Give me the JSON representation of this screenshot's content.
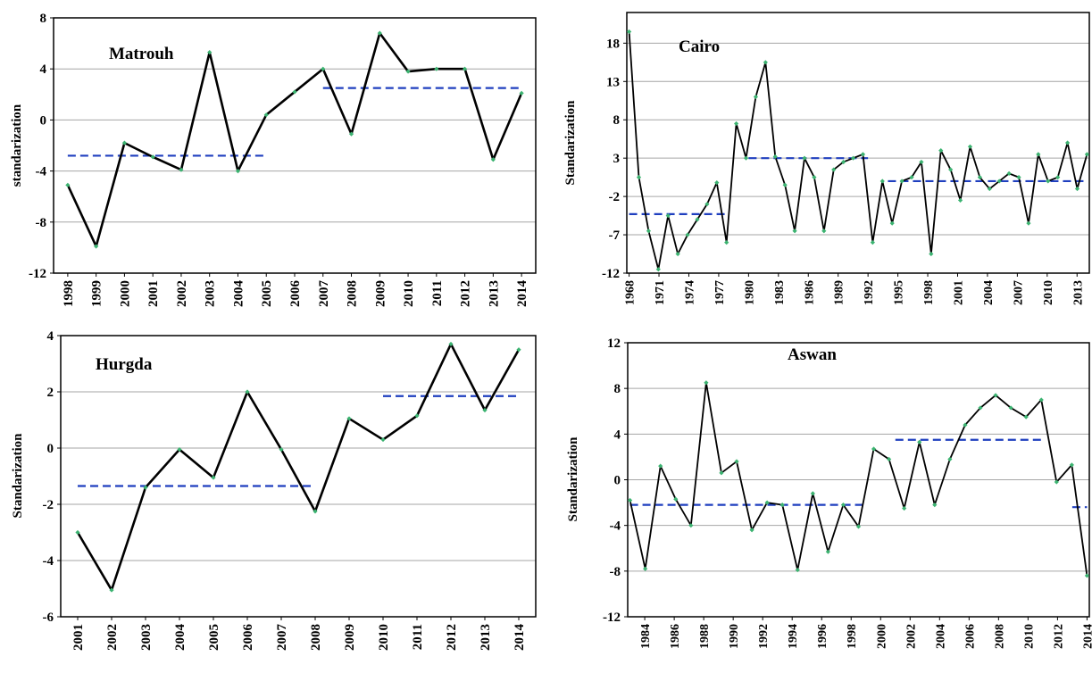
{
  "chart_data": [
    {
      "type": "line",
      "title": "Matrouh",
      "ylabel": "standarization",
      "ylim": [
        -12,
        8
      ],
      "yticks": [
        -12,
        -8,
        -4,
        0,
        4,
        8
      ],
      "x_labels": [
        "1998",
        "1999",
        "2000",
        "2001",
        "2002",
        "2003",
        "2004",
        "2005",
        "2006",
        "2007",
        "2008",
        "2009",
        "2010",
        "2011",
        "2012",
        "2013",
        "2014"
      ],
      "grid": "horizontal",
      "series": [
        {
          "values": [
            -5.1,
            -9.9,
            -1.8,
            -2.9,
            -3.9,
            5.3,
            -4.0,
            0.4,
            2.2,
            4.0,
            -1.1,
            6.8,
            3.8,
            4.0,
            4.0,
            -3.1,
            2.1
          ]
        }
      ],
      "means": [
        {
          "from": "1998",
          "to": "2005",
          "value": -2.8
        },
        {
          "from": "2007",
          "to": "2014",
          "value": 2.5
        }
      ]
    },
    {
      "type": "line",
      "title": "Cairo",
      "ylabel": "Standarization",
      "ylim": [
        -12,
        22
      ],
      "yticks": [
        -12,
        -7,
        -2,
        3,
        8,
        13,
        18
      ],
      "x_labels": [
        "1968",
        "1971",
        "1974",
        "1977",
        "1980",
        "1983",
        "1986",
        "1989",
        "1992",
        "1995",
        "1998",
        "2001",
        "2004",
        "2007",
        "2010",
        "2013"
      ],
      "x_start": 1968,
      "x_end": 2014,
      "grid": "horizontal",
      "series": [
        {
          "values": [
            19.5,
            0.5,
            -6.5,
            -11.5,
            -4.5,
            -9.5,
            -7.0,
            -5.0,
            -3.0,
            -0.2,
            -8.0,
            7.5,
            3.0,
            11.0,
            15.5,
            3.2,
            -0.5,
            -6.5,
            3.0,
            0.5,
            -6.5,
            1.5,
            2.5,
            3.0,
            3.5,
            -8.0,
            0.0,
            -5.5,
            0.0,
            0.5,
            2.5,
            -9.5,
            4.0,
            1.5,
            -2.5,
            4.5,
            0.5,
            -1.0,
            0.0,
            1.0,
            0.5,
            -5.5,
            3.5,
            0.0,
            0.5,
            5.0,
            -1.0,
            3.5
          ]
        }
      ],
      "means": [
        {
          "from": 1968,
          "to": 1978,
          "value": -4.3
        },
        {
          "from": 1980,
          "to": 1992,
          "value": 3.0
        },
        {
          "from": 1994,
          "to": 2014,
          "value": 0.0
        }
      ]
    },
    {
      "type": "line",
      "title": "Hurgda",
      "ylabel": "Standarization",
      "ylim": [
        -6,
        4
      ],
      "yticks": [
        -6,
        -4,
        -2,
        0,
        2,
        4
      ],
      "x_labels": [
        "2001",
        "2002",
        "2003",
        "2004",
        "2005",
        "2006",
        "2007",
        "2008",
        "2009",
        "2010",
        "2011",
        "2012",
        "2013",
        "2014"
      ],
      "grid": "horizontal",
      "series": [
        {
          "values": [
            -3.0,
            -5.05,
            -1.4,
            -0.05,
            -1.05,
            2.0,
            -0.05,
            -2.25,
            1.05,
            0.3,
            1.15,
            3.7,
            1.35,
            3.5
          ]
        }
      ],
      "means": [
        {
          "from": "2001",
          "to": "2008",
          "value": -1.35
        },
        {
          "from": "2010",
          "to": "2014",
          "value": 1.85
        }
      ]
    },
    {
      "type": "line",
      "title": "Aswan",
      "ylabel": "Standarization",
      "ylim": [
        -12,
        12
      ],
      "yticks": [
        -12,
        -8,
        -4,
        0,
        4,
        8,
        12
      ],
      "x_labels": [
        "1984",
        "1986",
        "1988",
        "1990",
        "1992",
        "1994",
        "1996",
        "1998",
        "2000",
        "2002",
        "2004",
        "2006",
        "2008",
        "2010",
        "2012",
        "2014"
      ],
      "x_start": 1983,
      "x_end": 2014,
      "grid": "horizontal",
      "series": [
        {
          "values": [
            -1.8,
            -7.8,
            1.2,
            -1.7,
            -4.0,
            8.5,
            0.6,
            1.6,
            -4.4,
            -2.0,
            -2.2,
            -7.9,
            -1.2,
            -6.3,
            -2.2,
            -4.1,
            2.7,
            1.8,
            -2.5,
            3.3,
            -2.2,
            1.8,
            4.8,
            6.3,
            7.4,
            6.3,
            5.5,
            7.0,
            -0.2,
            1.3,
            -8.4
          ]
        }
      ],
      "means": [
        {
          "from": 1983,
          "to": 1999,
          "value": -2.2
        },
        {
          "from": 2001,
          "to": 2011,
          "value": 3.5
        },
        {
          "from": 2013,
          "to": 2014,
          "value": -2.4
        }
      ]
    }
  ],
  "colors": {
    "line": "#000000",
    "marker": "#3cb371",
    "mean_line": "#1f3fbf",
    "grid": "#a6a6a6",
    "frame": "#000000"
  }
}
